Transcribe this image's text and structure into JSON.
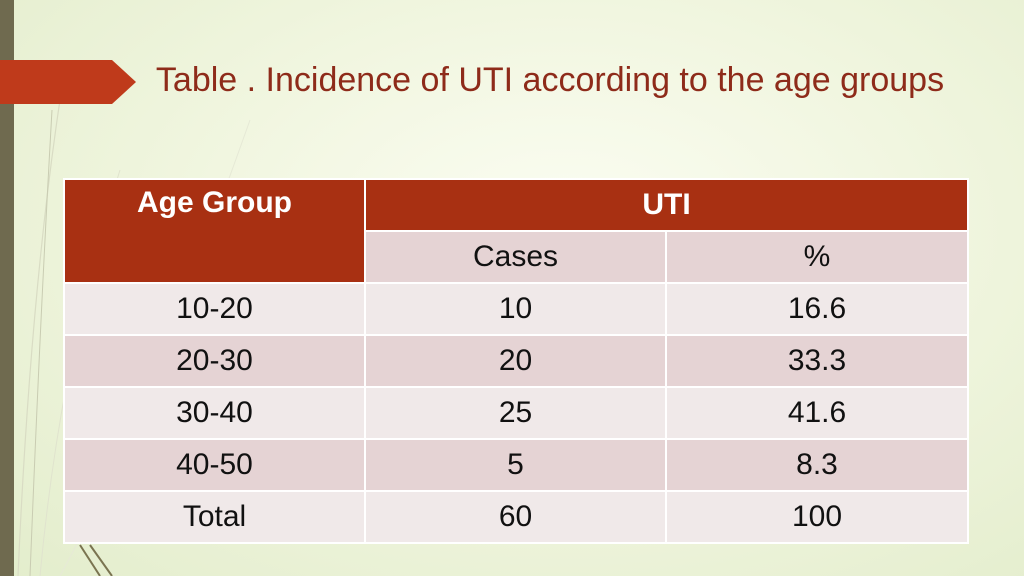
{
  "slide": {
    "title": "Table . Incidence of UTI according to the age groups"
  },
  "table": {
    "header": {
      "age_group": "Age Group",
      "uti": "UTI",
      "cases": "Cases",
      "percent": "%"
    },
    "rows": [
      {
        "age_group": "10-20",
        "cases": "10",
        "percent": "16.6"
      },
      {
        "age_group": "20-30",
        "cases": "20",
        "percent": "33.3"
      },
      {
        "age_group": "30-40",
        "cases": "25",
        "percent": "41.6"
      },
      {
        "age_group": "40-50",
        "cases": "5",
        "percent": "8.3"
      },
      {
        "age_group": "Total",
        "cases": "60",
        "percent": "100"
      }
    ]
  },
  "colors": {
    "accent": "#a83012",
    "title": "#8e2b1a",
    "row_light": "#f0e9e9",
    "row_dark": "#e5d3d4",
    "left_bar": "#6f6a4f"
  }
}
